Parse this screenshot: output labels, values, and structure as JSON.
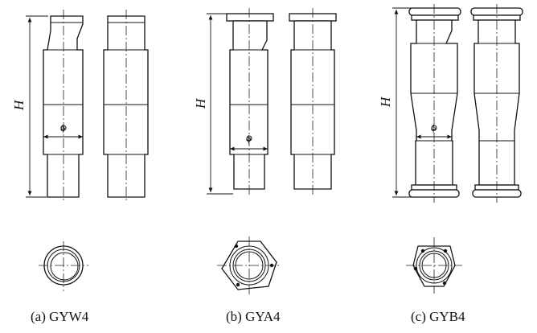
{
  "captions": {
    "a": "(a) GYW4",
    "b": "(b) GYA4",
    "c": "(c) GYB4"
  },
  "labels": {
    "height_symbol": "H",
    "diameter_symbol": "ϕ"
  },
  "colors": {
    "line": "#111111",
    "background": "#ffffff"
  }
}
